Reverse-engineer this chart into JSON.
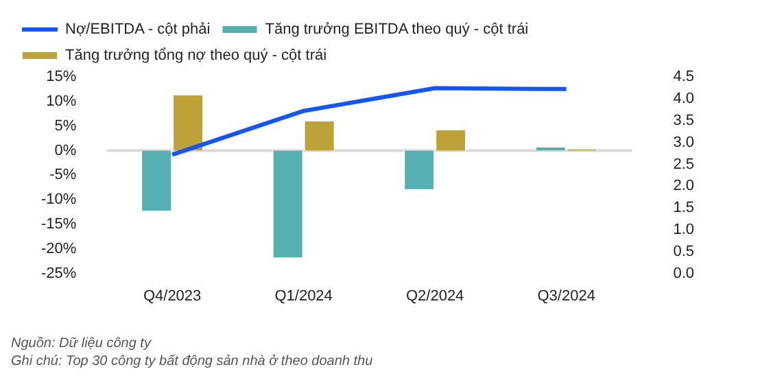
{
  "chart_data": {
    "type": "bar",
    "categories": [
      "Q4/2023",
      "Q1/2024",
      "Q2/2024",
      "Q3/2024"
    ],
    "series": [
      {
        "name": "Tăng trưởng EBITDA theo quý - cột trái",
        "color": "#56b0b2",
        "values": [
          -12.5,
          -22,
          -8.1,
          0.9
        ]
      },
      {
        "name": "Tăng trưởng tổng nợ theo quý - cột trái",
        "color": "#bfa13a",
        "values": [
          11.5,
          6.2,
          4.4,
          0.5
        ]
      },
      {
        "name": "Nợ/EBITDA - cột phải",
        "type": "line",
        "axis": "y2",
        "color": "#1155ff",
        "values": [
          2.72,
          3.72,
          4.24,
          4.22
        ]
      }
    ],
    "ylim": [
      -25,
      15
    ],
    "yticks": [
      {
        "value": 15,
        "label": "15%"
      },
      {
        "value": 10,
        "label": "10%"
      },
      {
        "value": 5,
        "label": "5%"
      },
      {
        "value": 0,
        "label": "0%"
      },
      {
        "value": -5,
        "label": "-5%"
      },
      {
        "value": -10,
        "label": "-10%"
      },
      {
        "value": -15,
        "label": "-15%"
      },
      {
        "value": -20,
        "label": "-20%"
      },
      {
        "value": -25,
        "label": "-25%"
      }
    ],
    "y2lim": [
      0,
      4.5
    ],
    "y2ticks": [
      {
        "value": 4.5,
        "label": "4.5"
      },
      {
        "value": 4,
        "label": "4.0"
      },
      {
        "value": 3.5,
        "label": "3.5"
      },
      {
        "value": 3,
        "label": "3.0"
      },
      {
        "value": 2.5,
        "label": "2.5"
      },
      {
        "value": 2,
        "label": "2.0"
      },
      {
        "value": 1.5,
        "label": "1.5"
      },
      {
        "value": 1,
        "label": "1.0"
      },
      {
        "value": 0.5,
        "label": "0.5"
      },
      {
        "value": 0,
        "label": "0.0"
      }
    ],
    "ref_lines": [
      {
        "axis": "y",
        "value": 0,
        "color": "#d9d9d9"
      }
    ],
    "legend": "top left",
    "grid": false,
    "annotations": [
      "Nguồn: Dữ liệu công ty",
      "Ghi chú: Top 30 công ty bất động sản nhà ở theo doanh thu"
    ]
  }
}
